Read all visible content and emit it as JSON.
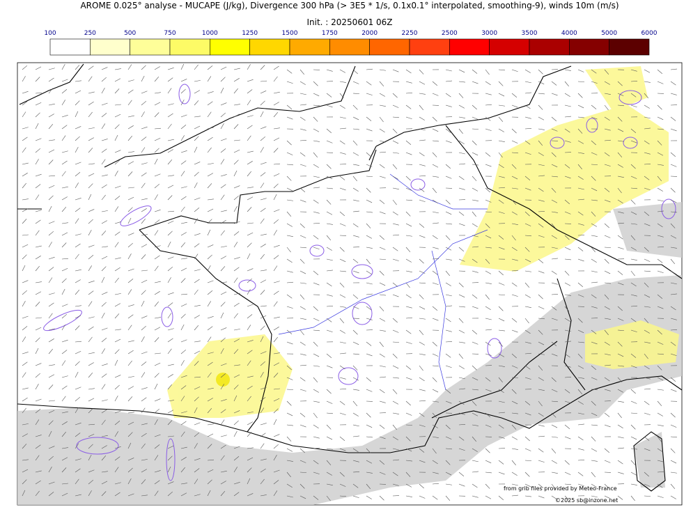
{
  "header": {
    "title": "AROME 0.025° analyse - MUCAPE (J/kg), Divergence 300 hPa (> 3E5 * 1/s, 0.1x0.1° interpolated, smoothing-9), winds 10m (m/s)",
    "init": "Init. : 20250601 06Z"
  },
  "colorbar": {
    "ticks": [
      100,
      250,
      500,
      750,
      1000,
      1250,
      1500,
      1750,
      2000,
      2250,
      2500,
      3000,
      3500,
      4000,
      5000,
      6000
    ],
    "colors": [
      "#ffffff",
      "#ffffcc",
      "#fefe99",
      "#fdfb66",
      "#ffff00",
      "#ffd700",
      "#ffaa00",
      "#ff8c00",
      "#ff6600",
      "#ff4010",
      "#ff0000",
      "#d50000",
      "#aa0000",
      "#850000",
      "#5c0000"
    ]
  },
  "credits": {
    "source": "from grib files provided by Meteo-France",
    "copyright": "©2025 sb@inzone.net"
  }
}
